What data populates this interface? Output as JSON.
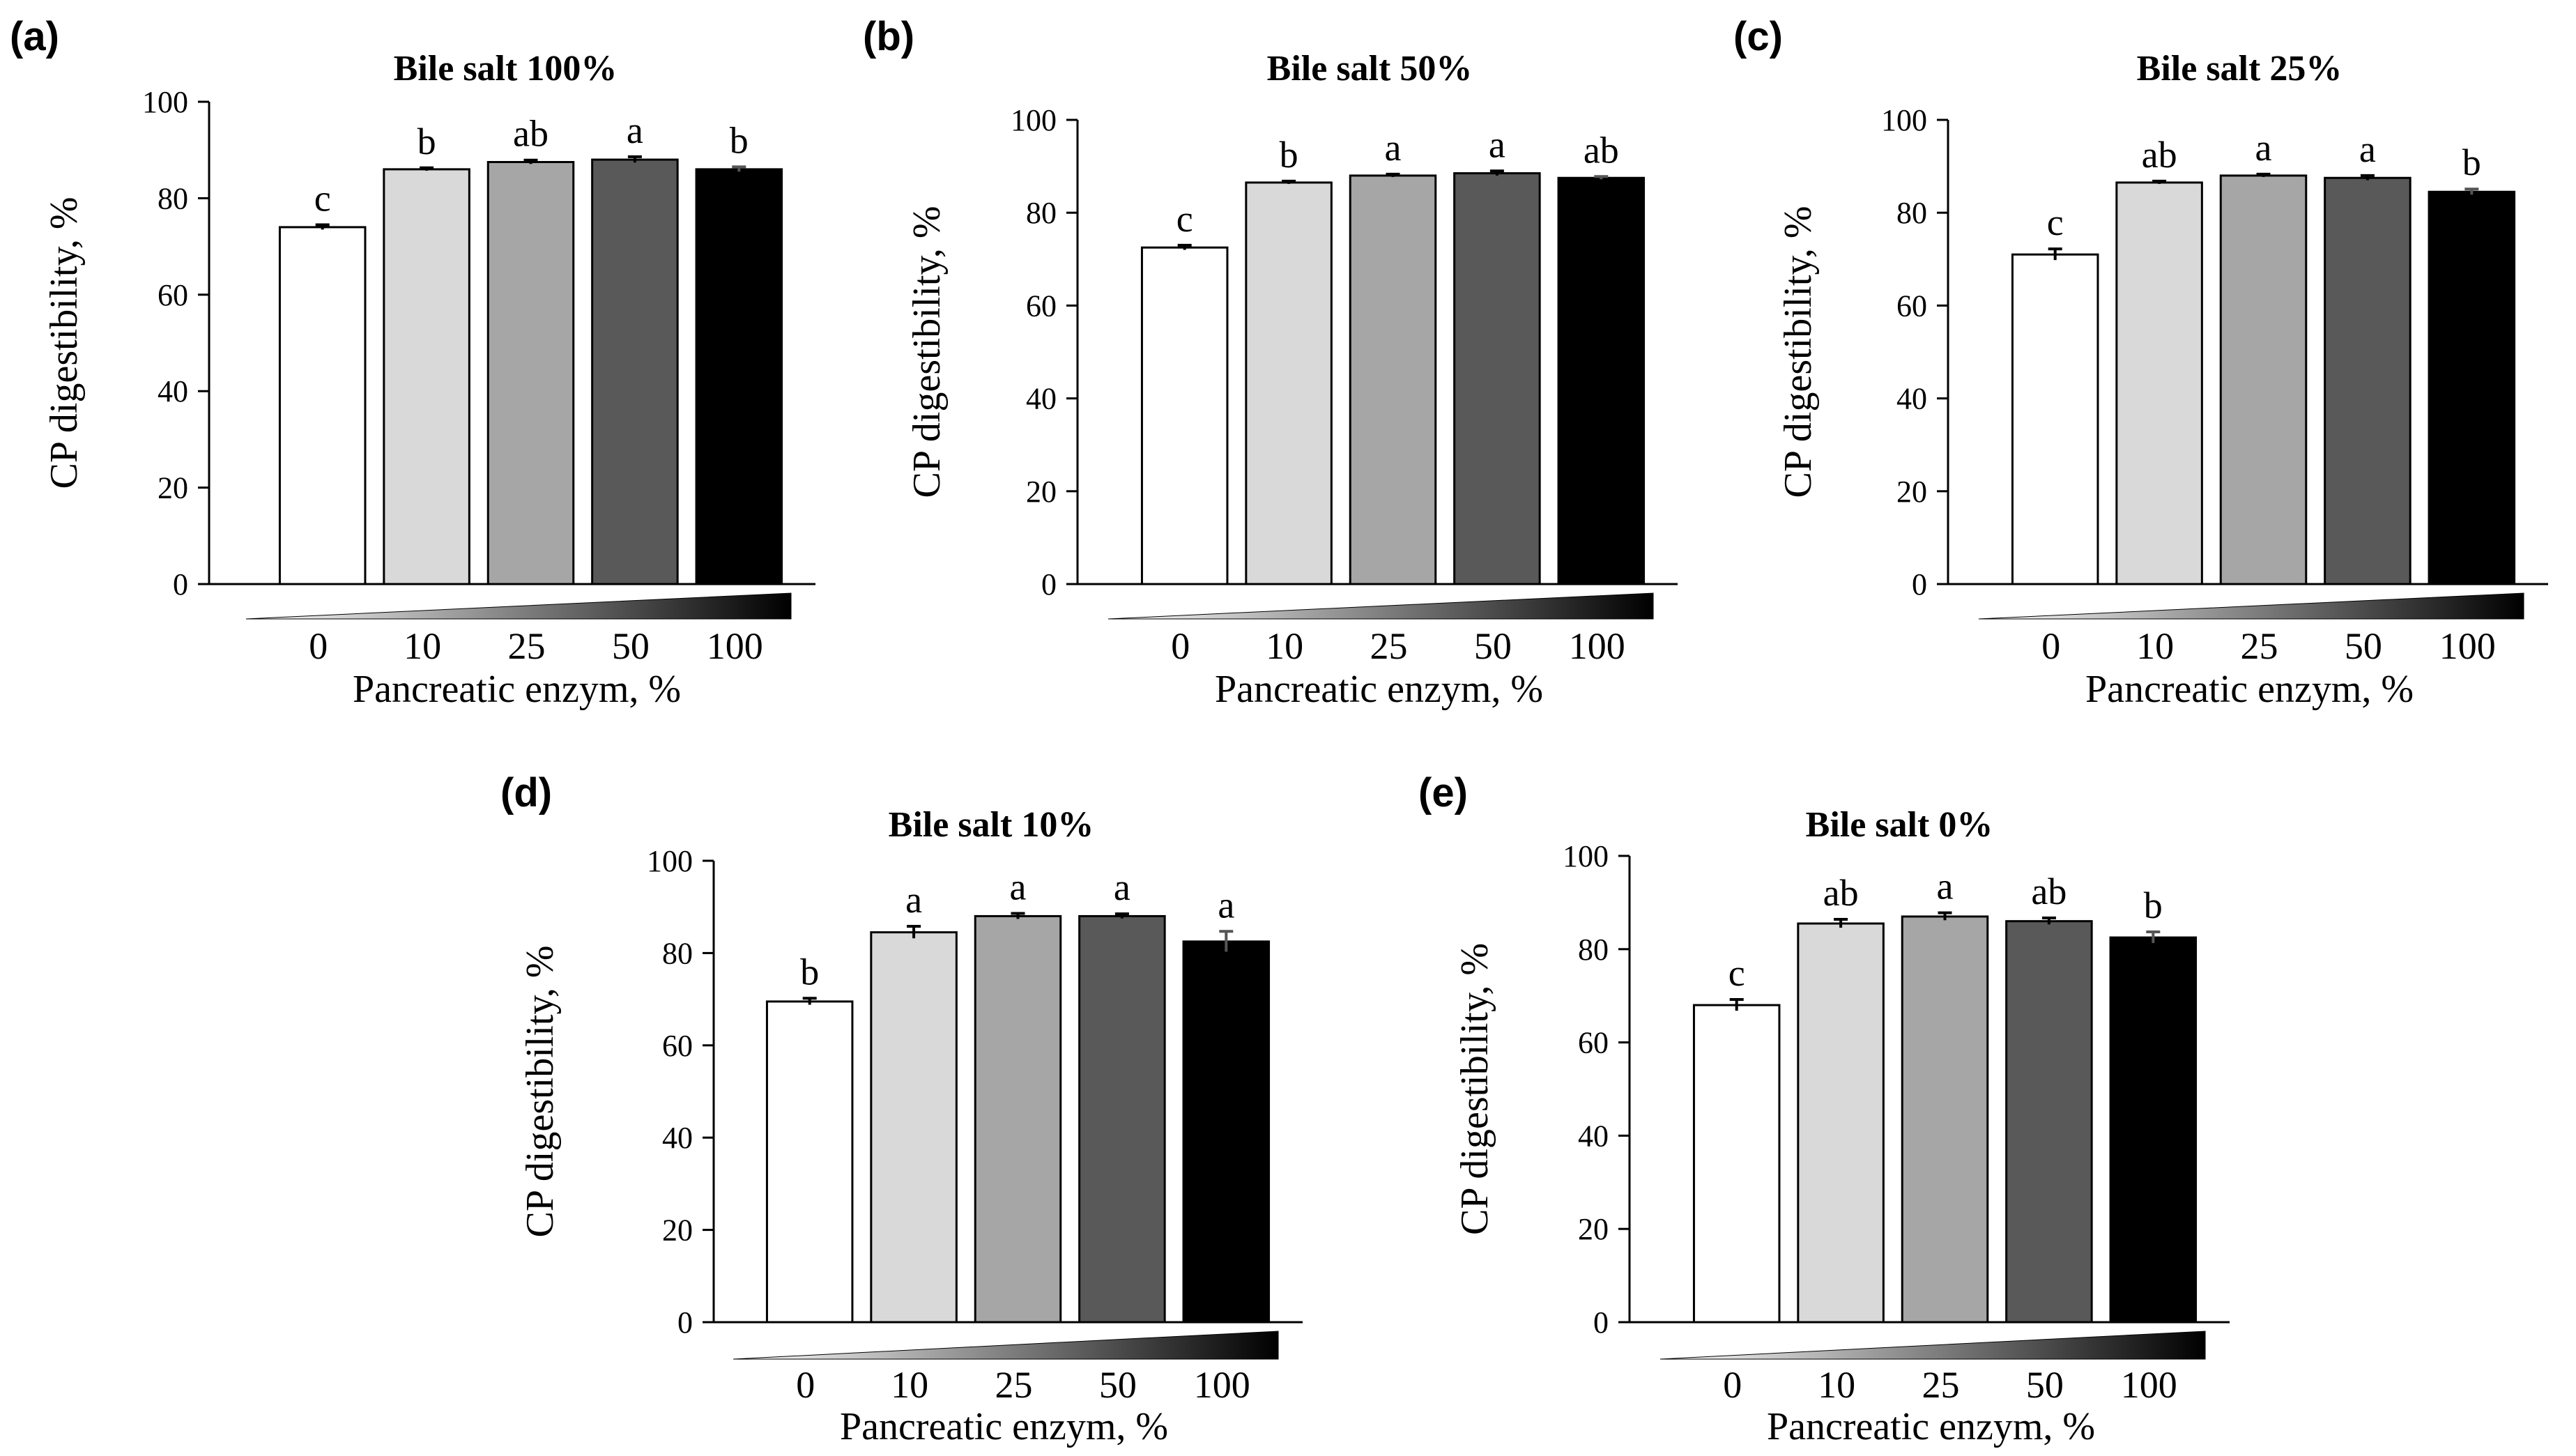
{
  "chart_data": [
    {
      "type": "bar",
      "panel": "(a)",
      "title": "Bile salt 100%",
      "xlabel": "Pancreatic enzym, %",
      "ylabel": "CP digestibility, %",
      "categories": [
        "0",
        "10",
        "25",
        "50",
        "100"
      ],
      "values": [
        74,
        86,
        87.5,
        88,
        86
      ],
      "errors": [
        0.5,
        0.3,
        0.4,
        0.6,
        0.5
      ],
      "significance": [
        "c",
        "b",
        "ab",
        "a",
        "b"
      ],
      "yticks": [
        "0",
        "20",
        "40",
        "60",
        "80",
        "100"
      ],
      "ylim": [
        0,
        100
      ],
      "bar_colors": [
        "#ffffff",
        "#d9d9d9",
        "#a6a6a6",
        "#595959",
        "#000000"
      ]
    },
    {
      "type": "bar",
      "panel": "(b)",
      "title": "Bile salt 50%",
      "xlabel": "Pancreatic enzym, %",
      "ylabel": "CP digestibility, %",
      "categories": [
        "0",
        "10",
        "25",
        "50",
        "100"
      ],
      "values": [
        72.5,
        86.5,
        88,
        88.5,
        87.5
      ],
      "errors": [
        0.5,
        0.3,
        0.3,
        0.5,
        0.3
      ],
      "significance": [
        "c",
        "b",
        "a",
        "a",
        "ab"
      ],
      "yticks": [
        "0",
        "20",
        "40",
        "60",
        "80",
        "100"
      ],
      "ylim": [
        0,
        100
      ],
      "bar_colors": [
        "#ffffff",
        "#d9d9d9",
        "#a6a6a6",
        "#595959",
        "#000000"
      ]
    },
    {
      "type": "bar",
      "panel": "(c)",
      "title": "Bile salt 25%",
      "xlabel": "Pancreatic enzym, %",
      "ylabel": "CP digestibility, %",
      "categories": [
        "0",
        "10",
        "25",
        "50",
        "100"
      ],
      "values": [
        71,
        86.5,
        88,
        87.5,
        84.5
      ],
      "errors": [
        1.2,
        0.3,
        0.3,
        0.5,
        0.6
      ],
      "significance": [
        "c",
        "ab",
        "a",
        "a",
        "b"
      ],
      "yticks": [
        "0",
        "20",
        "40",
        "60",
        "80",
        "100"
      ],
      "ylim": [
        0,
        100
      ],
      "bar_colors": [
        "#ffffff",
        "#d9d9d9",
        "#a6a6a6",
        "#595959",
        "#000000"
      ]
    },
    {
      "type": "bar",
      "panel": "(d)",
      "title": "Bile salt 10%",
      "xlabel": "Pancreatic enzym, %",
      "ylabel": "CP digestibility, %",
      "categories": [
        "0",
        "10",
        "25",
        "50",
        "100"
      ],
      "values": [
        69.5,
        84.5,
        88,
        88,
        82.5
      ],
      "errors": [
        0.7,
        1.3,
        0.6,
        0.5,
        2.2
      ],
      "significance": [
        "b",
        "a",
        "a",
        "a",
        "a"
      ],
      "yticks": [
        "0",
        "20",
        "40",
        "60",
        "80",
        "100"
      ],
      "ylim": [
        0,
        100
      ],
      "bar_colors": [
        "#ffffff",
        "#d9d9d9",
        "#a6a6a6",
        "#595959",
        "#000000"
      ]
    },
    {
      "type": "bar",
      "panel": "(e)",
      "title": "Bile salt 0%",
      "xlabel": "Pancreatic enzym, %",
      "ylabel": "CP digestibility, %",
      "categories": [
        "0",
        "10",
        "25",
        "50",
        "100"
      ],
      "values": [
        68,
        85.5,
        87,
        86,
        82.5
      ],
      "errors": [
        1.2,
        0.9,
        0.8,
        0.7,
        1.2
      ],
      "significance": [
        "c",
        "ab",
        "a",
        "ab",
        "b"
      ],
      "yticks": [
        "0",
        "20",
        "40",
        "60",
        "80",
        "100"
      ],
      "ylim": [
        0,
        100
      ],
      "bar_colors": [
        "#ffffff",
        "#d9d9d9",
        "#a6a6a6",
        "#595959",
        "#000000"
      ]
    }
  ]
}
